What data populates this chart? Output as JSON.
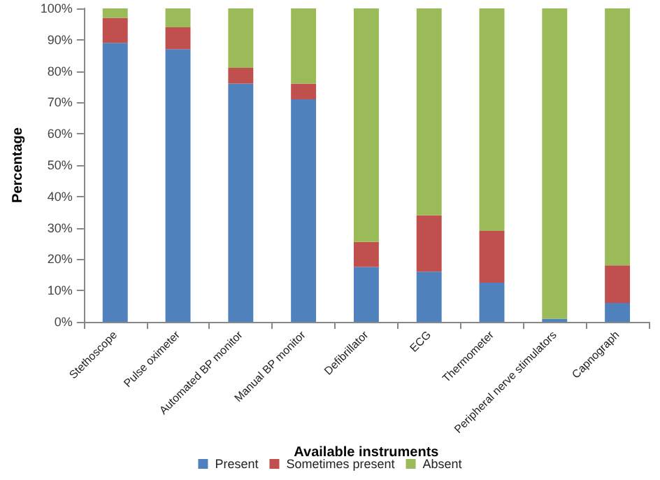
{
  "chart_data": {
    "type": "bar",
    "stacked": true,
    "xlabel": "Available instruments",
    "ylabel": "Percentage",
    "categories": [
      "Stethoscope",
      "Pulse oximeter",
      "Automated BP monitor",
      "Manual BP monitor",
      "Defibrillator",
      "ECG",
      "Thermometer",
      "Peripheral nerve stimulators",
      "Capnograph"
    ],
    "series": [
      {
        "name": "Present",
        "color": "#4f81bd",
        "values": [
          89,
          87,
          76,
          71,
          17.5,
          16,
          12.5,
          1,
          6
        ]
      },
      {
        "name": "Sometimes present",
        "color": "#c0504d",
        "values": [
          8,
          7,
          5,
          5,
          8,
          18,
          16.5,
          0,
          12
        ]
      },
      {
        "name": "Absent",
        "color": "#9bbb59",
        "values": [
          3,
          6,
          19,
          24,
          74.5,
          66,
          71,
          99,
          82
        ]
      }
    ],
    "ylim": [
      0,
      100
    ],
    "yticks": [
      {
        "value": 0,
        "label": "0%"
      },
      {
        "value": 10,
        "label": "10%"
      },
      {
        "value": 20,
        "label": "20%"
      },
      {
        "value": 30,
        "label": "30%"
      },
      {
        "value": 40,
        "label": "40%"
      },
      {
        "value": 50,
        "label": "50%"
      },
      {
        "value": 60,
        "label": "60%"
      },
      {
        "value": 70,
        "label": "70%"
      },
      {
        "value": 80,
        "label": "80%"
      },
      {
        "value": 90,
        "label": "90%"
      },
      {
        "value": 100,
        "label": "100%"
      }
    ],
    "grid": false,
    "legend": "bottom"
  }
}
